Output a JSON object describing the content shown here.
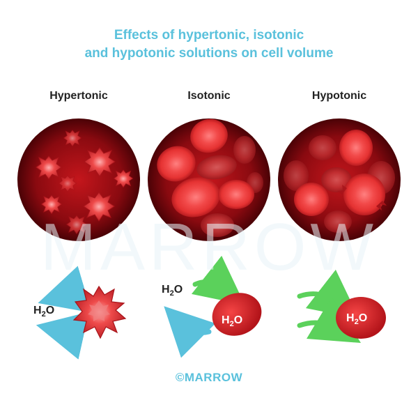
{
  "title": {
    "line1": "Effects of hypertonic, isotonic",
    "line2": "and hypotonic solutions on cell volume"
  },
  "panels": [
    {
      "label": "Hypertonic"
    },
    {
      "label": "Isotonic"
    },
    {
      "label": "Hypotonic"
    }
  ],
  "water": {
    "symbol": "H",
    "subscript": "2",
    "suffix": "O"
  },
  "watermark": "MARROW",
  "copyright": "©MARROW",
  "colors": {
    "title": "#5ac1dc",
    "cell": "#d9262c",
    "arrow_out": "#5ac1dc",
    "arrow_in": "#5bd15b"
  }
}
